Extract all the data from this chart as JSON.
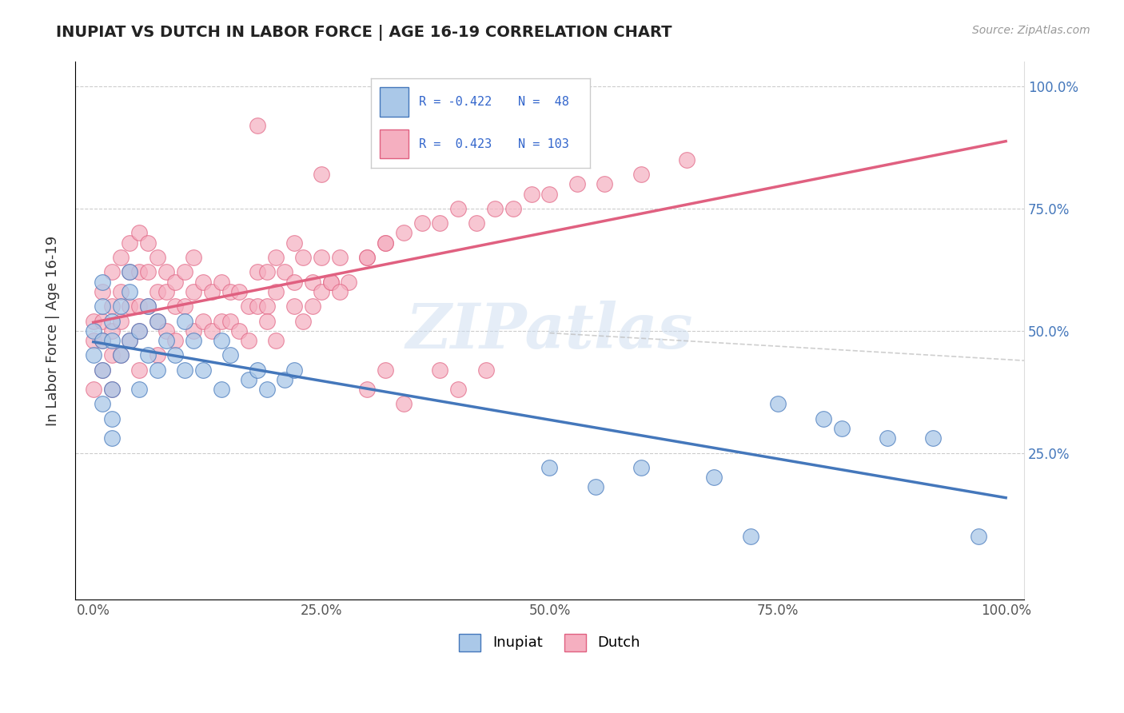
{
  "title": "INUPIAT VS DUTCH IN LABOR FORCE | AGE 16-19 CORRELATION CHART",
  "source_text": "Source: ZipAtlas.com",
  "ylabel": "In Labor Force | Age 16-19",
  "xlim": [
    -0.02,
    1.02
  ],
  "ylim": [
    -0.05,
    1.05
  ],
  "xtick_labels": [
    "0.0%",
    "25.0%",
    "50.0%",
    "75.0%",
    "100.0%"
  ],
  "xtick_vals": [
    0.0,
    0.25,
    0.5,
    0.75,
    1.0
  ],
  "ytick_labels": [
    "",
    "",
    "",
    "",
    ""
  ],
  "ytick_vals": [
    0.0,
    0.25,
    0.5,
    0.75,
    1.0
  ],
  "right_ytick_labels": [
    "100.0%",
    "75.0%",
    "50.0%",
    "25.0%"
  ],
  "right_ytick_vals": [
    1.0,
    0.75,
    0.5,
    0.25
  ],
  "inupiat_color": "#aac8e8",
  "dutch_color": "#f5afc0",
  "inupiat_R": -0.422,
  "inupiat_N": 48,
  "dutch_R": 0.423,
  "dutch_N": 103,
  "inupiat_line_color": "#4477bb",
  "dutch_line_color": "#e06080",
  "overall_line_color": "#bbbbbb",
  "legend_label_inupiat": "Inupiat",
  "legend_label_dutch": "Dutch",
  "background_color": "#ffffff",
  "watermark": "ZIPatlas",
  "inupiat_x": [
    0.0,
    0.0,
    0.01,
    0.01,
    0.01,
    0.01,
    0.01,
    0.02,
    0.02,
    0.02,
    0.02,
    0.02,
    0.03,
    0.03,
    0.04,
    0.04,
    0.04,
    0.05,
    0.05,
    0.06,
    0.06,
    0.07,
    0.07,
    0.08,
    0.09,
    0.1,
    0.1,
    0.11,
    0.12,
    0.14,
    0.14,
    0.15,
    0.17,
    0.18,
    0.19,
    0.21,
    0.22,
    0.5,
    0.55,
    0.6,
    0.68,
    0.72,
    0.75,
    0.8,
    0.82,
    0.87,
    0.92,
    0.97
  ],
  "inupiat_y": [
    0.5,
    0.45,
    0.6,
    0.55,
    0.48,
    0.42,
    0.35,
    0.52,
    0.48,
    0.38,
    0.32,
    0.28,
    0.55,
    0.45,
    0.62,
    0.58,
    0.48,
    0.5,
    0.38,
    0.55,
    0.45,
    0.52,
    0.42,
    0.48,
    0.45,
    0.52,
    0.42,
    0.48,
    0.42,
    0.48,
    0.38,
    0.45,
    0.4,
    0.42,
    0.38,
    0.4,
    0.42,
    0.22,
    0.18,
    0.22,
    0.2,
    0.08,
    0.35,
    0.32,
    0.3,
    0.28,
    0.28,
    0.08
  ],
  "dutch_x": [
    0.0,
    0.0,
    0.0,
    0.01,
    0.01,
    0.01,
    0.01,
    0.02,
    0.02,
    0.02,
    0.02,
    0.02,
    0.03,
    0.03,
    0.03,
    0.03,
    0.04,
    0.04,
    0.04,
    0.04,
    0.05,
    0.05,
    0.05,
    0.05,
    0.05,
    0.06,
    0.06,
    0.06,
    0.07,
    0.07,
    0.07,
    0.07,
    0.08,
    0.08,
    0.08,
    0.09,
    0.09,
    0.09,
    0.1,
    0.1,
    0.11,
    0.11,
    0.11,
    0.12,
    0.12,
    0.13,
    0.13,
    0.14,
    0.14,
    0.15,
    0.15,
    0.16,
    0.16,
    0.17,
    0.18,
    0.18,
    0.19,
    0.19,
    0.2,
    0.2,
    0.21,
    0.22,
    0.22,
    0.23,
    0.24,
    0.25,
    0.26,
    0.27,
    0.28,
    0.3,
    0.32,
    0.34,
    0.36,
    0.38,
    0.4,
    0.42,
    0.44,
    0.46,
    0.48,
    0.5,
    0.53,
    0.56,
    0.6,
    0.65,
    0.3,
    0.32,
    0.34,
    0.17,
    0.19,
    0.2,
    0.22,
    0.23,
    0.24,
    0.25,
    0.26,
    0.27,
    0.3,
    0.32,
    0.25,
    0.18,
    0.38,
    0.4,
    0.43
  ],
  "dutch_y": [
    0.52,
    0.48,
    0.38,
    0.58,
    0.52,
    0.48,
    0.42,
    0.62,
    0.55,
    0.5,
    0.45,
    0.38,
    0.65,
    0.58,
    0.52,
    0.45,
    0.68,
    0.62,
    0.55,
    0.48,
    0.7,
    0.62,
    0.55,
    0.5,
    0.42,
    0.68,
    0.62,
    0.55,
    0.65,
    0.58,
    0.52,
    0.45,
    0.62,
    0.58,
    0.5,
    0.6,
    0.55,
    0.48,
    0.62,
    0.55,
    0.65,
    0.58,
    0.5,
    0.6,
    0.52,
    0.58,
    0.5,
    0.6,
    0.52,
    0.58,
    0.52,
    0.58,
    0.5,
    0.55,
    0.62,
    0.55,
    0.62,
    0.55,
    0.65,
    0.58,
    0.62,
    0.68,
    0.6,
    0.65,
    0.6,
    0.65,
    0.6,
    0.65,
    0.6,
    0.65,
    0.68,
    0.7,
    0.72,
    0.72,
    0.75,
    0.72,
    0.75,
    0.75,
    0.78,
    0.78,
    0.8,
    0.8,
    0.82,
    0.85,
    0.38,
    0.42,
    0.35,
    0.48,
    0.52,
    0.48,
    0.55,
    0.52,
    0.55,
    0.58,
    0.6,
    0.58,
    0.65,
    0.68,
    0.82,
    0.92,
    0.42,
    0.38,
    0.42
  ]
}
